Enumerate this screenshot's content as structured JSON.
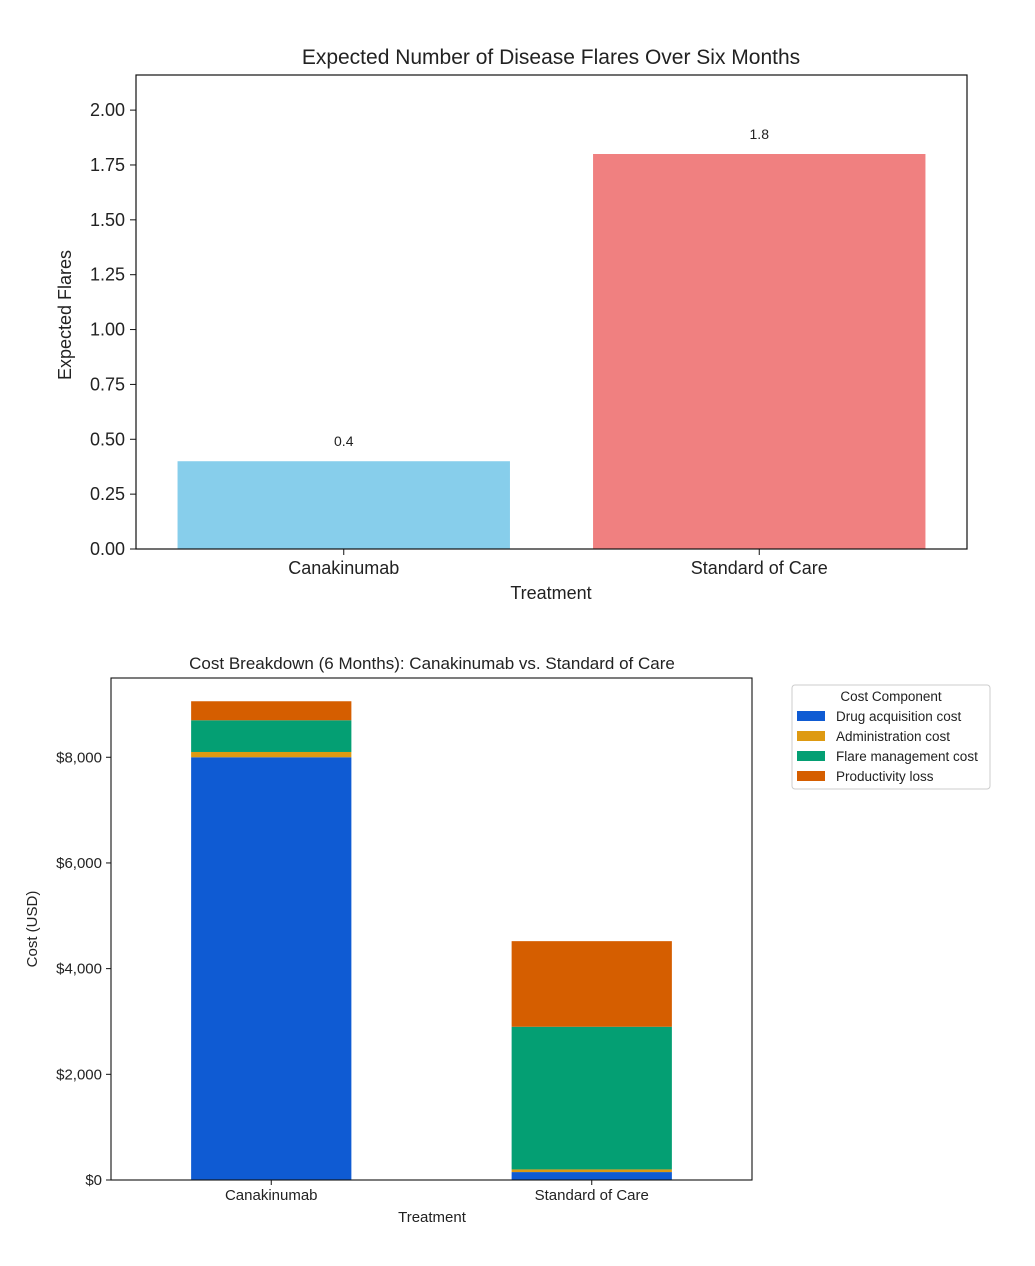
{
  "chart_data": [
    {
      "type": "bar",
      "title": "Expected Number of Disease Flares Over Six Months",
      "xlabel": "Treatment",
      "ylabel": "Expected Flares",
      "categories": [
        "Canakinumab",
        "Standard of Care"
      ],
      "values": [
        0.4,
        1.8
      ],
      "value_labels": [
        "0.4",
        "1.8"
      ],
      "colors": [
        "#87CEEB",
        "#F08080"
      ],
      "ylim": [
        0,
        2.16
      ],
      "yticks": [
        0,
        0.25,
        0.5,
        0.75,
        1.0,
        1.25,
        1.5,
        1.75,
        2.0
      ],
      "ytick_labels": [
        "0.00",
        "0.25",
        "0.50",
        "0.75",
        "1.00",
        "1.25",
        "1.50",
        "1.75",
        "2.00"
      ],
      "grid": false
    },
    {
      "type": "stacked-bar",
      "title": "Cost Breakdown (6 Months): Canakinumab vs. Standard of Care",
      "xlabel": "Treatment",
      "ylabel": "Cost (USD)",
      "categories": [
        "Canakinumab",
        "Standard of Care"
      ],
      "series": [
        {
          "name": "Drug acquisition cost",
          "color": "#0F5BD3",
          "values": [
            8000,
            150
          ]
        },
        {
          "name": "Administration cost",
          "color": "#DE9A12",
          "values": [
            100,
            50
          ]
        },
        {
          "name": "Flare management cost",
          "color": "#049F73",
          "values": [
            600,
            2700
          ]
        },
        {
          "name": "Productivity loss",
          "color": "#D55E00",
          "values": [
            360,
            1620
          ]
        }
      ],
      "ylim": [
        0,
        9500
      ],
      "yticks": [
        0,
        2000,
        4000,
        6000,
        8000
      ],
      "ytick_labels": [
        "$0",
        "$2,000",
        "$4,000",
        "$6,000",
        "$8,000"
      ],
      "legend": {
        "title": "Cost Component",
        "placement": "outside-right"
      },
      "grid": false
    }
  ]
}
